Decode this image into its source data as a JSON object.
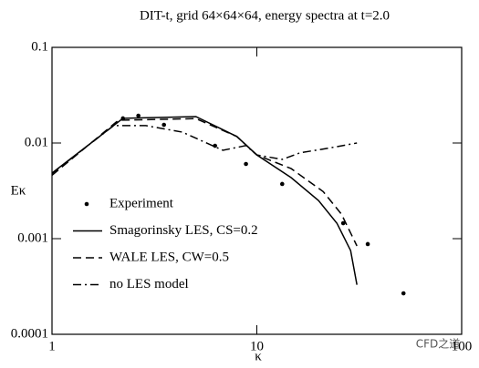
{
  "chart_data": {
    "type": "line",
    "title": "DIT-t, grid 64×64×64, energy spectra at t=2.0",
    "xlabel": "κ",
    "ylabel": "Eκ",
    "log_x": true,
    "log_y": true,
    "xlim": [
      1,
      100
    ],
    "ylim": [
      0.0001,
      0.1
    ],
    "xticks": [
      1,
      10,
      100
    ],
    "yticks": [
      0.0001,
      0.001,
      0.01,
      0.1
    ],
    "legend": "lower-left",
    "watermark": "CFD之道",
    "series": [
      {
        "name": "Experiment",
        "style": "dots",
        "color": "#000000",
        "x": [
          2.22,
          2.64,
          3.52,
          6.25,
          8.85,
          13.3,
          26.4,
          34.8,
          52
        ],
        "values": [
          0.0181,
          0.0193,
          0.0155,
          0.00936,
          0.00604,
          0.00373,
          0.00145,
          0.000877,
          0.000268
        ]
      },
      {
        "name": "Smagorinsky LES, CS=0.2",
        "style": "solid",
        "color": "#000000",
        "x": [
          1,
          2.22,
          5.04,
          7.98,
          10,
          14.7,
          20,
          24.6,
          28.7,
          30.8
        ],
        "values": [
          0.00485,
          0.0181,
          0.0189,
          0.0117,
          0.0075,
          0.00435,
          0.0025,
          0.00145,
          0.00075,
          0.00033
        ]
      },
      {
        "name": "WALE LES, CW=0.5",
        "style": "dashed",
        "color": "#000000",
        "x": [
          1,
          2.11,
          5.04,
          7.98,
          10,
          14.7,
          21.1,
          25.9,
          30.8
        ],
        "values": [
          0.0046,
          0.0173,
          0.018,
          0.0117,
          0.0075,
          0.0054,
          0.0031,
          0.0018,
          0.00084
        ]
      },
      {
        "name": "no LES model",
        "style": "dashdot",
        "color": "#000000",
        "x": [
          1,
          2.0,
          2.87,
          4.32,
          6.83,
          8.85,
          10,
          13.3,
          16.3,
          22.2,
          30.8
        ],
        "values": [
          0.0048,
          0.0152,
          0.0152,
          0.013,
          0.0084,
          0.0094,
          0.0075,
          0.00674,
          0.0079,
          0.0088,
          0.01
        ]
      }
    ]
  }
}
